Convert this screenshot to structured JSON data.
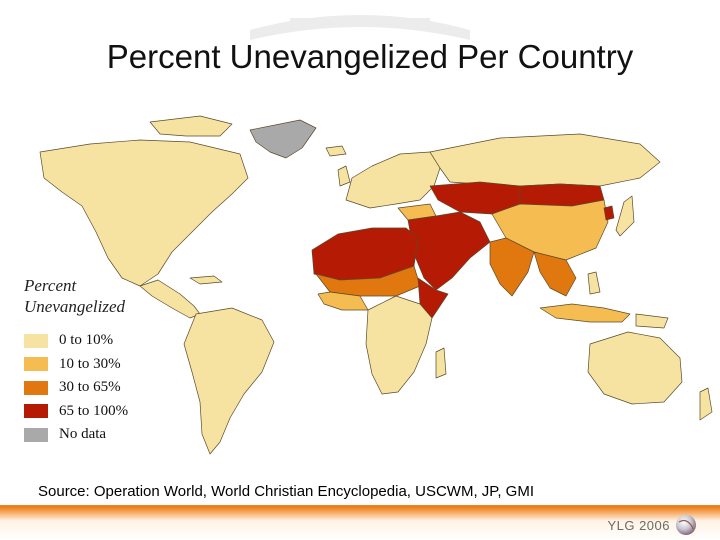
{
  "slide": {
    "title": "Percent Unevangelized Per Country",
    "source": "Source:  Operation World, World Christian Encyclopedia, USCWM, JP, GMI",
    "brand": "YLG 2006"
  },
  "legend": {
    "title_line1": "Percent",
    "title_line2": "Unevangelized",
    "items": [
      {
        "label": "0 to 10%",
        "color": "#f7e3a1"
      },
      {
        "label": "10  to 30%",
        "color": "#f5bc52"
      },
      {
        "label": "30 to 65%",
        "color": "#e0780f"
      },
      {
        "label": "65 to 100%",
        "color": "#b51a05"
      },
      {
        "label": "No data",
        "color": "#a9a9a9"
      }
    ]
  },
  "colors": {
    "ocean": "#ffffff",
    "border": "#5a4a2a",
    "accent": "#ee7f1f"
  },
  "icons": [
    "globe-icon"
  ]
}
